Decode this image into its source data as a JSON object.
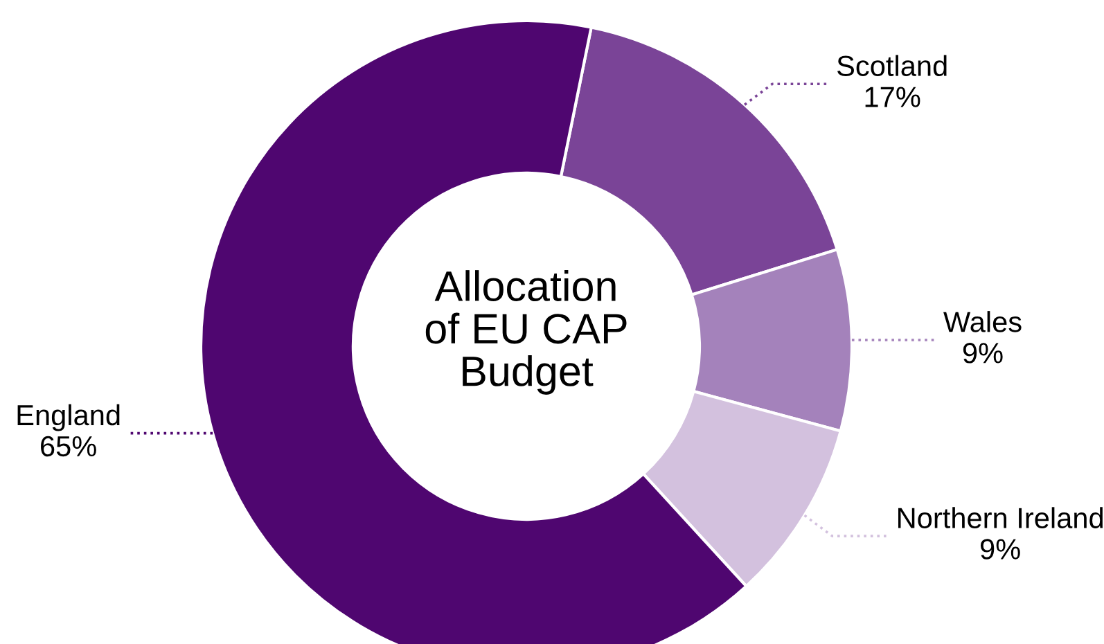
{
  "chart_data": {
    "type": "donut",
    "title": "Allocation\nof EU CAP\nBudget",
    "categories": [
      "Scotland",
      "Wales",
      "Northern Ireland",
      "England"
    ],
    "values": [
      17,
      9,
      9,
      65
    ],
    "colors": [
      "#7a4497",
      "#a482bb",
      "#d3c1de",
      "#4f0670"
    ],
    "value_labels": [
      "17%",
      "9%",
      "9%",
      "65%"
    ],
    "legend": false
  }
}
